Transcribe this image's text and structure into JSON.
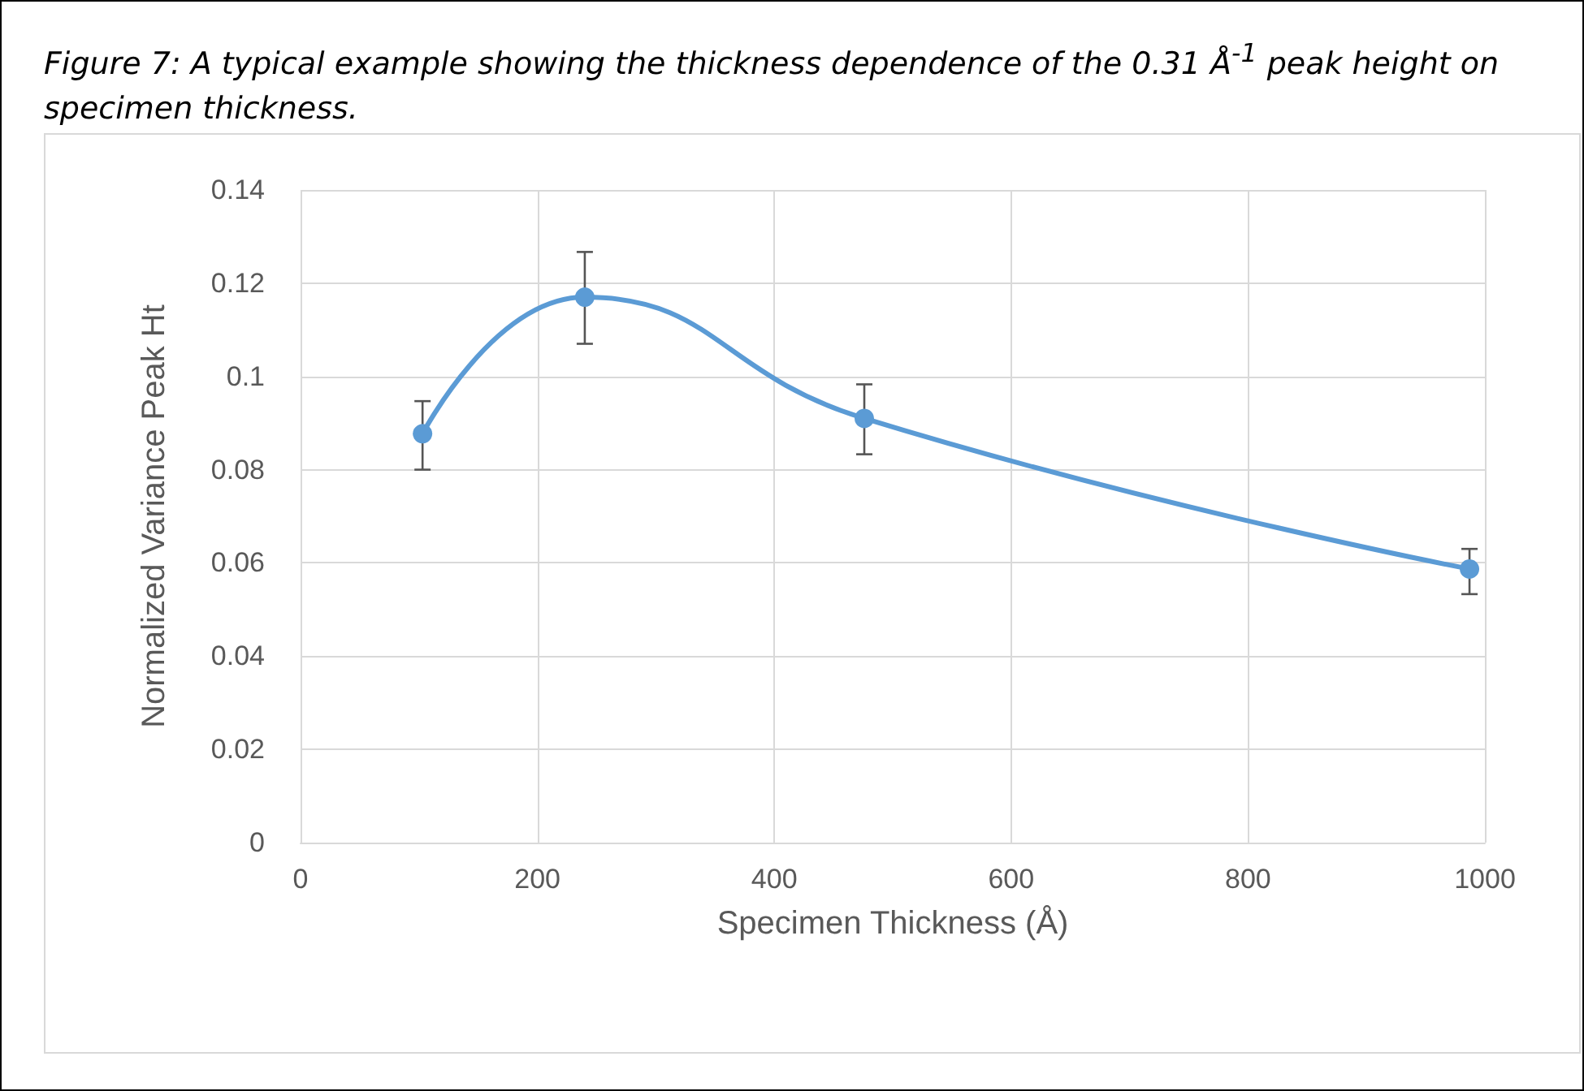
{
  "chart_data": {
    "type": "line",
    "title": "Figure 7: A typical example showing the thickness dependence of the 0.31 Å$^{-1}$ peak height on specimen thickness.",
    "xlabel": "Specimen Thickness (Å)",
    "ylabel": "Normalized Variance Peak Ht",
    "x": [
      103,
      240,
      476,
      987
    ],
    "series": [
      {
        "color": "#5b9bd5",
        "values": [
          0.0877,
          0.117,
          0.091,
          0.0587
        ],
        "errors": [
          [
            0.08,
            0.0947
          ],
          [
            0.107,
            0.1267
          ],
          [
            0.0833,
            0.0983
          ],
          [
            0.0533,
            0.063
          ]
        ]
      }
    ],
    "xlim": [
      0,
      1000
    ],
    "xticks": [
      0,
      200,
      400,
      600,
      800,
      1000
    ],
    "ylim": [
      0,
      0.14
    ],
    "yticks": [
      0,
      0.02,
      0.04,
      0.06,
      0.08,
      0.1,
      0.12,
      0.14
    ],
    "grid": true,
    "marker": "circle",
    "line_style": "solid"
  }
}
